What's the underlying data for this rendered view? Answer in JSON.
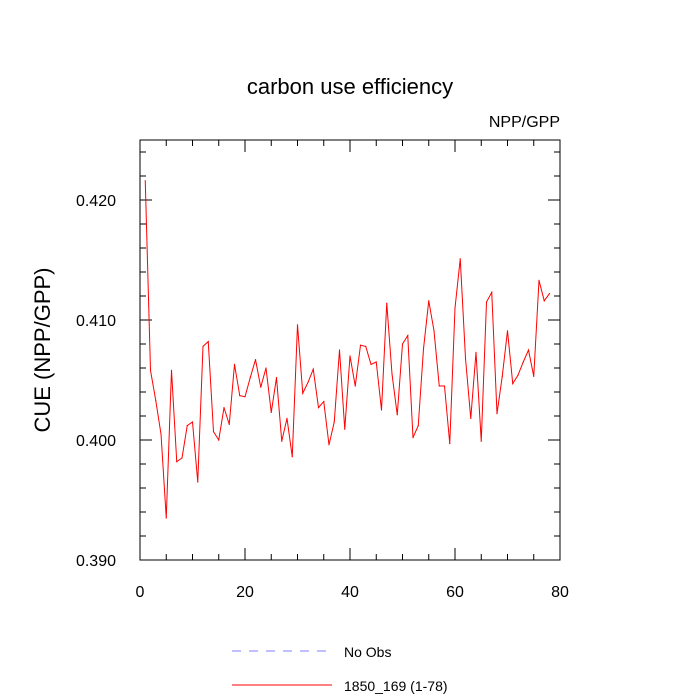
{
  "chart_data": {
    "type": "line",
    "title": "carbon use efficiency",
    "subtitle": "NPP/GPP",
    "xlabel": "",
    "ylabel": "CUE  (NPP/GPP)",
    "xlim": [
      0,
      80
    ],
    "ylim": [
      0.39,
      0.425
    ],
    "x_ticks": [
      0,
      20,
      40,
      60,
      80
    ],
    "x_tick_labels": [
      "0",
      "20",
      "40",
      "60",
      "80"
    ],
    "y_ticks": [
      0.39,
      0.4,
      0.41,
      0.42
    ],
    "y_tick_labels": [
      "0.390",
      "0.400",
      "0.410",
      "0.420"
    ],
    "grid": false,
    "legend_position": "bottom",
    "colors": {
      "series": "#ff0000",
      "obs": "#8080ff",
      "axis": "#000000"
    },
    "legend": [
      {
        "label": "No Obs",
        "style": "dashed",
        "color": "#8080ff"
      },
      {
        "label": "1850_169 (1-78)",
        "style": "solid",
        "color": "#ff0000"
      }
    ],
    "series": [
      {
        "name": "1850_169 (1-78)",
        "x": [
          1,
          2,
          3,
          4,
          5,
          6,
          7,
          8,
          9,
          10,
          11,
          12,
          13,
          14,
          15,
          16,
          17,
          18,
          19,
          20,
          21,
          22,
          23,
          24,
          25,
          26,
          27,
          28,
          29,
          30,
          31,
          32,
          33,
          34,
          35,
          36,
          37,
          38,
          39,
          40,
          41,
          42,
          43,
          44,
          45,
          46,
          47,
          48,
          49,
          50,
          51,
          52,
          53,
          54,
          55,
          56,
          57,
          58,
          59,
          60,
          61,
          62,
          63,
          64,
          65,
          66,
          67,
          68,
          69,
          70,
          71,
          72,
          73,
          74,
          75,
          76,
          77,
          78
        ],
        "y": [
          0.4216,
          0.4058,
          0.4033,
          0.4005,
          0.3935,
          0.4058,
          0.3982,
          0.3985,
          0.4012,
          0.4015,
          0.3965,
          0.4078,
          0.4082,
          0.4007,
          0.4,
          0.4027,
          0.4013,
          0.4063,
          0.4037,
          0.4036,
          0.4052,
          0.4067,
          0.4044,
          0.406,
          0.4023,
          0.4052,
          0.3999,
          0.4018,
          0.3986,
          0.4096,
          0.4039,
          0.4048,
          0.4059,
          0.4027,
          0.4032,
          0.3996,
          0.4015,
          0.4075,
          0.4009,
          0.407,
          0.4045,
          0.4079,
          0.4078,
          0.4063,
          0.4065,
          0.4025,
          0.4114,
          0.4055,
          0.4021,
          0.408,
          0.4087,
          0.4002,
          0.4012,
          0.4076,
          0.4116,
          0.4091,
          0.4045,
          0.4045,
          0.3997,
          0.411,
          0.4151,
          0.4068,
          0.4018,
          0.4073,
          0.3999,
          0.4115,
          0.4123,
          0.4022,
          0.4053,
          0.4091,
          0.4047,
          0.4054,
          0.4065,
          0.4075,
          0.4053,
          0.4133,
          0.4116,
          0.4122
        ]
      }
    ]
  }
}
